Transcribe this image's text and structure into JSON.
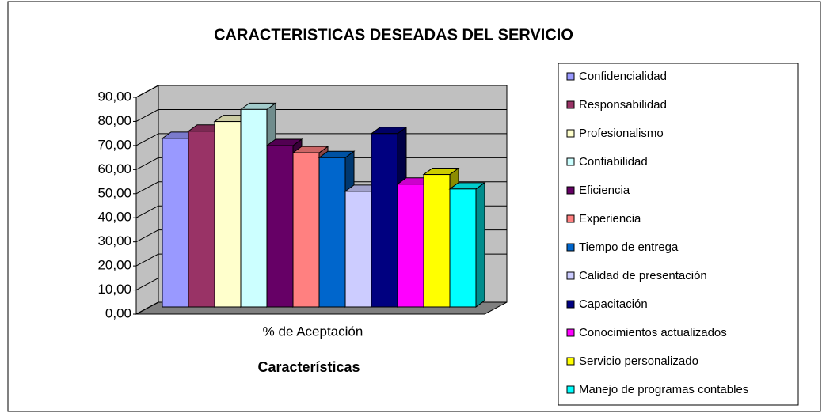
{
  "chart_data": {
    "type": "bar3d",
    "title": "CARACTERISTICAS DESEADAS DEL SERVICIO",
    "categories": [
      "% de Aceptación"
    ],
    "x_label": "Características",
    "ylim": [
      0,
      90
    ],
    "yticks": [
      {
        "value": 0,
        "label": "0,00"
      },
      {
        "value": 10,
        "label": "10,00"
      },
      {
        "value": 20,
        "label": "20,00"
      },
      {
        "value": 30,
        "label": "30,00"
      },
      {
        "value": 40,
        "label": "40,00"
      },
      {
        "value": 50,
        "label": "50,00"
      },
      {
        "value": 60,
        "label": "60,00"
      },
      {
        "value": 70,
        "label": "70,00"
      },
      {
        "value": 80,
        "label": "80,00"
      },
      {
        "value": 90,
        "label": "90,00"
      }
    ],
    "grid": true,
    "legend": "right",
    "series": [
      {
        "name": "Confidencialidad",
        "color": "#9999ff",
        "values": [
          70
        ]
      },
      {
        "name": "Responsabilidad",
        "color": "#993366",
        "values": [
          73
        ]
      },
      {
        "name": "Profesionalismo",
        "color": "#ffffcc",
        "values": [
          77
        ]
      },
      {
        "name": "Confiabilidad",
        "color": "#ccffff",
        "values": [
          82
        ]
      },
      {
        "name": "Eficiencia",
        "color": "#660066",
        "values": [
          67
        ]
      },
      {
        "name": "Experiencia",
        "color": "#ff8080",
        "values": [
          64
        ]
      },
      {
        "name": "Tiempo de entrega",
        "color": "#0066cc",
        "values": [
          62
        ]
      },
      {
        "name": "Calidad de presentación",
        "color": "#ccccff",
        "values": [
          48
        ]
      },
      {
        "name": "Capacitación",
        "color": "#000080",
        "values": [
          72
        ]
      },
      {
        "name": "Conocimientos actualizados",
        "color": "#ff00ff",
        "values": [
          51
        ]
      },
      {
        "name": "Servicio personalizado",
        "color": "#ffff00",
        "values": [
          55
        ]
      },
      {
        "name": "Manejo de programas contables",
        "color": "#00ffff",
        "values": [
          49
        ]
      }
    ]
  }
}
